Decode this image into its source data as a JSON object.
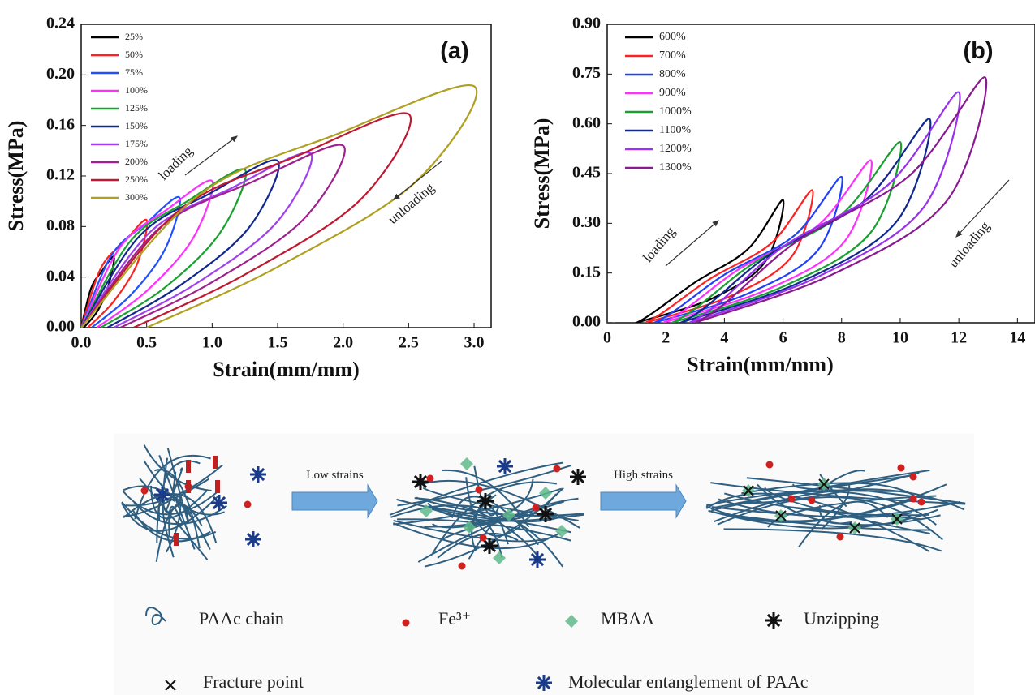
{
  "chart_data": [
    {
      "type": "line",
      "xlabel": "Strain(mm/mm)",
      "ylabel": "Stress(MPa)",
      "annotations": [
        "(a)",
        "loading",
        "unloading"
      ],
      "xlim": [
        0,
        3.13
      ],
      "ylim": [
        0,
        0.24
      ],
      "xticks": [
        {
          "value": 0,
          "label": "0.0"
        },
        0.5,
        {
          "value": 1,
          "label": "1.0"
        },
        1.5,
        {
          "value": 2,
          "label": "2.0"
        },
        2.5,
        {
          "value": 3,
          "label": "3.0"
        }
      ],
      "yticks": [
        {
          "value": 0,
          "label": "0.00"
        },
        0.04,
        0.08,
        0.12,
        0.16,
        {
          "value": 0.2,
          "label": "0.20"
        },
        0.24
      ],
      "legend": "upper left",
      "series": [
        {
          "name": "25%",
          "color": "#000000",
          "x": [
            0,
            0.075,
            0.16,
            0.25,
            0.21,
            0.13,
            0.02
          ],
          "values": [
            0,
            0.031,
            0.045,
            0.056,
            0.034,
            0.014,
            0
          ]
        },
        {
          "name": "50%",
          "color": "#ff2020",
          "x": [
            0,
            0.15,
            0.33,
            0.5,
            0.43,
            0.25,
            0.05
          ],
          "values": [
            0,
            0.047,
            0.068,
            0.085,
            0.051,
            0.021,
            0
          ]
        },
        {
          "name": "75%",
          "color": "#2050ff",
          "x": [
            0,
            0.23,
            0.49,
            0.75,
            0.64,
            0.38,
            0.08
          ],
          "values": [
            0,
            0.057,
            0.082,
            0.103,
            0.062,
            0.026,
            0
          ]
        },
        {
          "name": "100%",
          "color": "#ff30ff",
          "x": [
            0,
            0.3,
            0.65,
            1.0,
            0.85,
            0.5,
            0.12
          ],
          "values": [
            0,
            0.064,
            0.093,
            0.116,
            0.07,
            0.029,
            0
          ]
        },
        {
          "name": "125%",
          "color": "#18a030",
          "x": [
            0,
            0.38,
            0.81,
            1.25,
            1.06,
            0.63,
            0.15
          ],
          "values": [
            0,
            0.069,
            0.1,
            0.125,
            0.075,
            0.031,
            0
          ]
        },
        {
          "name": "150%",
          "color": "#102890",
          "x": [
            0,
            0.45,
            0.98,
            1.5,
            1.28,
            0.75,
            0.2
          ],
          "values": [
            0,
            0.073,
            0.106,
            0.132,
            0.079,
            0.033,
            0
          ]
        },
        {
          "name": "175%",
          "color": "#a040f0",
          "x": [
            0,
            0.53,
            1.14,
            1.75,
            1.49,
            0.88,
            0.25
          ],
          "values": [
            0,
            0.076,
            0.11,
            0.138,
            0.083,
            0.035,
            0
          ]
        },
        {
          "name": "200%",
          "color": "#a0208c",
          "x": [
            0,
            0.6,
            1.3,
            2.0,
            1.7,
            1.0,
            0.3
          ],
          "values": [
            0,
            0.079,
            0.115,
            0.144,
            0.086,
            0.036,
            0
          ]
        },
        {
          "name": "250%",
          "color": "#c01830",
          "x": [
            0,
            0.75,
            1.63,
            2.5,
            2.13,
            1.25,
            0.4
          ],
          "values": [
            0,
            0.093,
            0.135,
            0.169,
            0.101,
            0.042,
            0
          ]
        },
        {
          "name": "300%",
          "color": "#b0a020",
          "x": [
            0,
            0.9,
            1.95,
            3.0,
            2.55,
            1.5,
            0.5
          ],
          "values": [
            0,
            0.105,
            0.153,
            0.191,
            0.115,
            0.048,
            0
          ]
        }
      ]
    },
    {
      "type": "line",
      "xlabel": "Strain(mm/mm)",
      "ylabel": "Stress(MPa)",
      "annotations": [
        "(b)",
        "loading",
        "unloading"
      ],
      "xlim": [
        0,
        14.6
      ],
      "ylim": [
        0,
        0.9
      ],
      "xticks": [
        0,
        2,
        4,
        6,
        8,
        10,
        12,
        14
      ],
      "yticks": [
        {
          "value": 0,
          "label": "0.00"
        },
        0.15,
        {
          "value": 0.3,
          "label": "0.30"
        },
        0.45,
        {
          "value": 0.6,
          "label": "0.60"
        },
        0.75,
        {
          "value": 0.9,
          "label": "0.90"
        }
      ],
      "legend": "upper left",
      "series": [
        {
          "name": "600%",
          "color": "#000000",
          "x": [
            0,
            1,
            3,
            4.8,
            6,
            5.4,
            3.6,
            1
          ],
          "values": [
            0,
            0,
            0.122,
            0.222,
            0.37,
            0.185,
            0.074,
            0
          ]
        },
        {
          "name": "700%",
          "color": "#ff2020",
          "x": [
            0,
            1.3,
            3.5,
            5.6,
            7,
            6.3,
            4.2,
            1.3
          ],
          "values": [
            0,
            0,
            0.132,
            0.24,
            0.4,
            0.2,
            0.08,
            0
          ]
        },
        {
          "name": "800%",
          "color": "#2040ff",
          "x": [
            0,
            1.6,
            4,
            6.4,
            8,
            7.2,
            4.8,
            1.6
          ],
          "values": [
            0,
            0,
            0.145,
            0.264,
            0.44,
            0.22,
            0.088,
            0
          ]
        },
        {
          "name": "900%",
          "color": "#ff30ff",
          "x": [
            0,
            1.9,
            4.5,
            7.2,
            9,
            8.1,
            5.4,
            1.9
          ],
          "values": [
            0,
            0,
            0.162,
            0.294,
            0.49,
            0.245,
            0.098,
            0
          ]
        },
        {
          "name": "1000%",
          "color": "#18a030",
          "x": [
            0,
            2.2,
            5,
            8,
            10,
            9,
            6,
            2.2
          ],
          "values": [
            0,
            0,
            0.18,
            0.327,
            0.545,
            0.273,
            0.109,
            0
          ]
        },
        {
          "name": "1100%",
          "color": "#102890",
          "x": [
            0,
            2.5,
            5.5,
            8.8,
            11,
            9.9,
            6.6,
            2.5
          ],
          "values": [
            0,
            0,
            0.203,
            0.369,
            0.615,
            0.308,
            0.123,
            0
          ]
        },
        {
          "name": "1200%",
          "color": "#9a30f0",
          "x": [
            0,
            2.8,
            6,
            9.6,
            12,
            10.8,
            7.2,
            2.8
          ],
          "values": [
            0,
            0,
            0.229,
            0.417,
            0.695,
            0.348,
            0.139,
            0
          ]
        },
        {
          "name": "1300%",
          "color": "#8a1a90",
          "x": [
            0,
            3,
            6.45,
            10.32,
            12.9,
            11.61,
            7.74,
            3
          ],
          "values": [
            0,
            0,
            0.244,
            0.444,
            0.74,
            0.37,
            0.148,
            0
          ]
        }
      ]
    }
  ],
  "diagram": {
    "arrows": [
      "Low strains",
      "High strains"
    ],
    "legend": [
      "PAAc chain",
      "Fe³⁺",
      "MBAA",
      "Unzipping",
      "Fracture point",
      "Molecular entanglement of PAAc"
    ]
  }
}
